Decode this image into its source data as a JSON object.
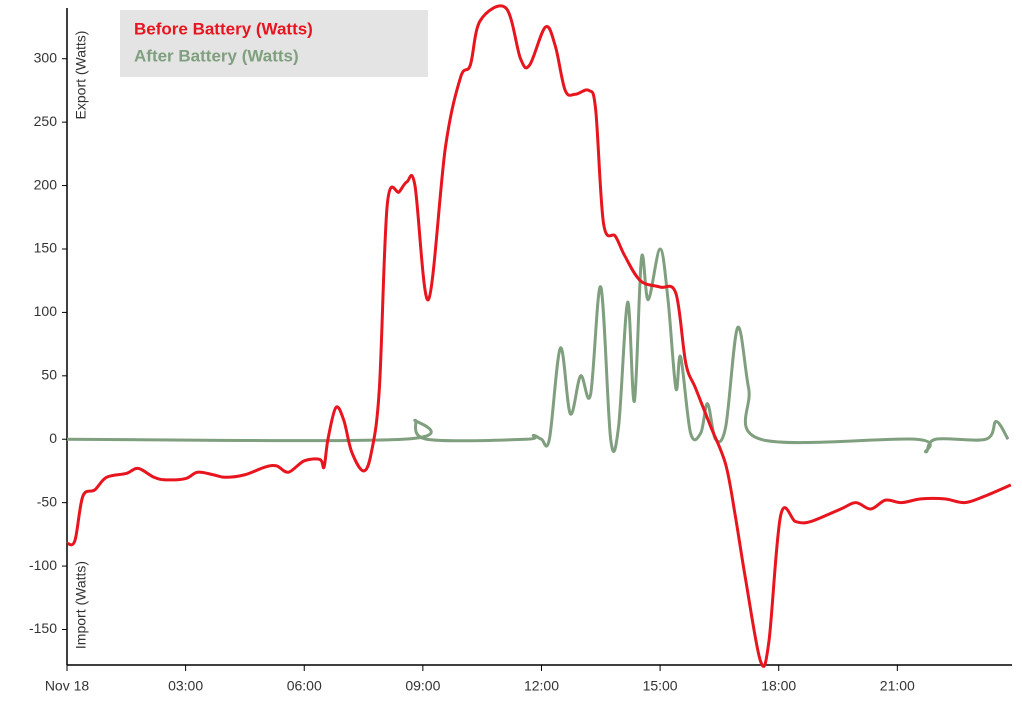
{
  "chart_data": {
    "type": "line",
    "y_label_top": "Export (Watts)",
    "y_label_bottom": "Import (Watts)",
    "xlim": [
      0,
      23.9
    ],
    "ylim": [
      -178,
      340
    ],
    "xticks": [
      {
        "value": 0,
        "label": "Nov 18"
      },
      {
        "value": 3,
        "label": "03:00"
      },
      {
        "value": 6,
        "label": "06:00"
      },
      {
        "value": 9,
        "label": "09:00"
      },
      {
        "value": 12,
        "label": "12:00"
      },
      {
        "value": 15,
        "label": "15:00"
      },
      {
        "value": 18,
        "label": "18:00"
      },
      {
        "value": 21,
        "label": "21:00"
      }
    ],
    "yticks": [
      -150,
      -100,
      -50,
      0,
      50,
      100,
      150,
      200,
      250,
      300
    ],
    "legend": "top-left",
    "series": [
      {
        "name": "Before Battery (Watts)",
        "color": "#e8141e",
        "x": [
          0,
          0.2,
          0.4,
          0.7,
          1.0,
          1.5,
          1.8,
          2.2,
          2.5,
          3.0,
          3.3,
          3.7,
          4.0,
          4.5,
          5.0,
          5.3,
          5.6,
          6.0,
          6.4,
          6.5,
          6.6,
          6.8,
          7.0,
          7.2,
          7.5,
          7.7,
          7.9,
          8.1,
          8.4,
          8.6,
          8.8,
          9.14,
          9.57,
          9.95,
          10.2,
          10.45,
          11.1,
          11.47,
          11.7,
          12.1,
          12.35,
          12.6,
          12.86,
          13.2,
          13.37,
          13.57,
          13.87,
          14.1,
          14.5,
          15.0,
          15.4,
          15.65,
          15.9,
          16.28,
          16.66,
          16.9,
          17.16,
          17.54,
          17.75,
          18.05,
          18.43,
          18.8,
          19.57,
          19.95,
          20.33,
          20.7,
          21.1,
          21.6,
          22.2,
          22.7,
          23.2,
          23.87
        ],
        "values": [
          -82,
          -80,
          -45,
          -40,
          -30,
          -27,
          -23,
          -30,
          -32,
          -31,
          -26,
          -28,
          -30,
          -28,
          -22,
          -21,
          -26,
          -17,
          -16,
          -22,
          0,
          25,
          15,
          -10,
          -25,
          -10,
          40,
          185,
          195,
          203,
          200,
          110,
          230,
          285,
          295,
          330,
          340,
          300,
          295,
          325,
          310,
          275,
          272,
          275,
          260,
          170,
          160,
          145,
          125,
          120,
          115,
          60,
          40,
          10,
          -20,
          -60,
          -110,
          -175,
          -160,
          -60,
          -65,
          -65,
          -55,
          -50,
          -55,
          -48,
          -50,
          -47,
          -47,
          -50,
          -45,
          -36
        ]
      },
      {
        "name": "After Battery (Watts)",
        "color": "#7f9f7f",
        "x": [
          0,
          8.5,
          8.8,
          9.1,
          11.6,
          11.8,
          12.0,
          12.2,
          12.48,
          12.73,
          12.99,
          13.24,
          13.5,
          13.75,
          13.95,
          14.18,
          14.35,
          14.53,
          14.7,
          15.0,
          15.2,
          15.4,
          15.52,
          15.77,
          16.03,
          16.2,
          16.4,
          16.66,
          16.96,
          17.24,
          17.54,
          21.47,
          21.72,
          21.97,
          23.24,
          23.5,
          23.8
        ],
        "values": [
          0,
          0,
          15,
          0,
          0,
          3,
          0,
          0,
          72,
          20,
          50,
          35,
          120,
          0,
          10,
          108,
          30,
          143,
          110,
          150,
          110,
          40,
          65,
          5,
          5,
          28,
          0,
          10,
          88,
          40,
          0,
          0,
          -10,
          0,
          0,
          14,
          0
        ]
      }
    ]
  }
}
